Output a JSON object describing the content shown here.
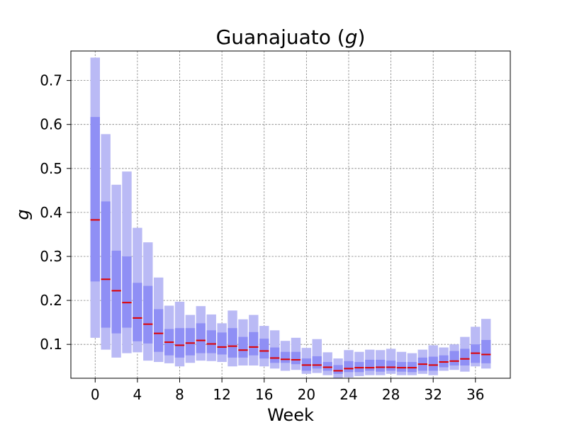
{
  "chart_data": {
    "type": "box",
    "title_main": "Guanajuato (",
    "title_var": "g",
    "title_close": ")",
    "xlabel": "Week",
    "ylabel": "g",
    "xlim": [
      -2.3,
      39.3
    ],
    "ylim": [
      0.023,
      0.767
    ],
    "xticks": [
      0,
      4,
      8,
      12,
      16,
      20,
      24,
      28,
      32,
      36
    ],
    "yticks": [
      0.1,
      0.2,
      0.3,
      0.4,
      0.5,
      0.6,
      0.7
    ],
    "grid": true,
    "colors": {
      "outer_band": "#babaf5",
      "inner_band": "#8f8ff5",
      "median": "#e00000",
      "grid": "#808080"
    },
    "series": [
      {
        "week": 0,
        "p05": 0.115,
        "p25": 0.243,
        "median": 0.383,
        "p75": 0.617,
        "p95": 0.752
      },
      {
        "week": 1,
        "p05": 0.088,
        "p25": 0.138,
        "median": 0.248,
        "p75": 0.425,
        "p95": 0.578
      },
      {
        "week": 2,
        "p05": 0.07,
        "p25": 0.125,
        "median": 0.222,
        "p75": 0.313,
        "p95": 0.463
      },
      {
        "week": 3,
        "p05": 0.08,
        "p25": 0.138,
        "median": 0.195,
        "p75": 0.3,
        "p95": 0.493
      },
      {
        "week": 4,
        "p05": 0.082,
        "p25": 0.107,
        "median": 0.16,
        "p75": 0.24,
        "p95": 0.365
      },
      {
        "week": 5,
        "p05": 0.063,
        "p25": 0.102,
        "median": 0.146,
        "p75": 0.233,
        "p95": 0.332
      },
      {
        "week": 6,
        "p05": 0.06,
        "p25": 0.083,
        "median": 0.125,
        "p75": 0.18,
        "p95": 0.252
      },
      {
        "week": 7,
        "p05": 0.057,
        "p25": 0.075,
        "median": 0.105,
        "p75": 0.135,
        "p95": 0.188
      },
      {
        "week": 8,
        "p05": 0.05,
        "p25": 0.07,
        "median": 0.098,
        "p75": 0.137,
        "p95": 0.197
      },
      {
        "week": 9,
        "p05": 0.058,
        "p25": 0.075,
        "median": 0.103,
        "p75": 0.137,
        "p95": 0.167
      },
      {
        "week": 10,
        "p05": 0.063,
        "p25": 0.08,
        "median": 0.109,
        "p75": 0.148,
        "p95": 0.187
      },
      {
        "week": 11,
        "p05": 0.062,
        "p25": 0.08,
        "median": 0.101,
        "p75": 0.132,
        "p95": 0.168
      },
      {
        "week": 12,
        "p05": 0.06,
        "p25": 0.077,
        "median": 0.094,
        "p75": 0.127,
        "p95": 0.148
      },
      {
        "week": 13,
        "p05": 0.05,
        "p25": 0.07,
        "median": 0.096,
        "p75": 0.137,
        "p95": 0.177
      },
      {
        "week": 14,
        "p05": 0.052,
        "p25": 0.07,
        "median": 0.087,
        "p75": 0.117,
        "p95": 0.157
      },
      {
        "week": 15,
        "p05": 0.052,
        "p25": 0.075,
        "median": 0.094,
        "p75": 0.128,
        "p95": 0.167
      },
      {
        "week": 16,
        "p05": 0.05,
        "p25": 0.068,
        "median": 0.085,
        "p75": 0.113,
        "p95": 0.142
      },
      {
        "week": 17,
        "p05": 0.045,
        "p25": 0.058,
        "median": 0.069,
        "p75": 0.093,
        "p95": 0.132
      },
      {
        "week": 18,
        "p05": 0.04,
        "p25": 0.058,
        "median": 0.066,
        "p75": 0.083,
        "p95": 0.108
      },
      {
        "week": 19,
        "p05": 0.042,
        "p25": 0.055,
        "median": 0.065,
        "p75": 0.083,
        "p95": 0.115
      },
      {
        "week": 20,
        "p05": 0.033,
        "p25": 0.04,
        "median": 0.053,
        "p75": 0.068,
        "p95": 0.092
      },
      {
        "week": 21,
        "p05": 0.035,
        "p25": 0.045,
        "median": 0.053,
        "p75": 0.073,
        "p95": 0.112
      },
      {
        "week": 22,
        "p05": 0.03,
        "p25": 0.04,
        "median": 0.048,
        "p75": 0.06,
        "p95": 0.082
      },
      {
        "week": 23,
        "p05": 0.023,
        "p25": 0.033,
        "median": 0.04,
        "p75": 0.053,
        "p95": 0.068
      },
      {
        "week": 24,
        "p05": 0.025,
        "p25": 0.037,
        "median": 0.045,
        "p75": 0.062,
        "p95": 0.087
      },
      {
        "week": 25,
        "p05": 0.028,
        "p25": 0.037,
        "median": 0.047,
        "p75": 0.06,
        "p95": 0.083
      },
      {
        "week": 26,
        "p05": 0.03,
        "p25": 0.04,
        "median": 0.047,
        "p75": 0.065,
        "p95": 0.088
      },
      {
        "week": 27,
        "p05": 0.03,
        "p25": 0.038,
        "median": 0.048,
        "p75": 0.065,
        "p95": 0.087
      },
      {
        "week": 28,
        "p05": 0.033,
        "p25": 0.04,
        "median": 0.048,
        "p75": 0.063,
        "p95": 0.09
      },
      {
        "week": 29,
        "p05": 0.03,
        "p25": 0.038,
        "median": 0.047,
        "p75": 0.06,
        "p95": 0.083
      },
      {
        "week": 30,
        "p05": 0.03,
        "p25": 0.037,
        "median": 0.047,
        "p75": 0.06,
        "p95": 0.08
      },
      {
        "week": 31,
        "p05": 0.033,
        "p25": 0.04,
        "median": 0.055,
        "p75": 0.07,
        "p95": 0.088
      },
      {
        "week": 32,
        "p05": 0.03,
        "p25": 0.04,
        "median": 0.053,
        "p75": 0.072,
        "p95": 0.098
      },
      {
        "week": 33,
        "p05": 0.04,
        "p25": 0.048,
        "median": 0.06,
        "p75": 0.075,
        "p95": 0.093
      },
      {
        "week": 34,
        "p05": 0.042,
        "p25": 0.052,
        "median": 0.062,
        "p75": 0.085,
        "p95": 0.1
      },
      {
        "week": 35,
        "p05": 0.038,
        "p25": 0.052,
        "median": 0.067,
        "p75": 0.09,
        "p95": 0.117
      },
      {
        "week": 36,
        "p05": 0.05,
        "p25": 0.058,
        "median": 0.08,
        "p75": 0.1,
        "p95": 0.14
      },
      {
        "week": 37,
        "p05": 0.045,
        "p25": 0.057,
        "median": 0.077,
        "p75": 0.11,
        "p95": 0.158
      }
    ]
  }
}
